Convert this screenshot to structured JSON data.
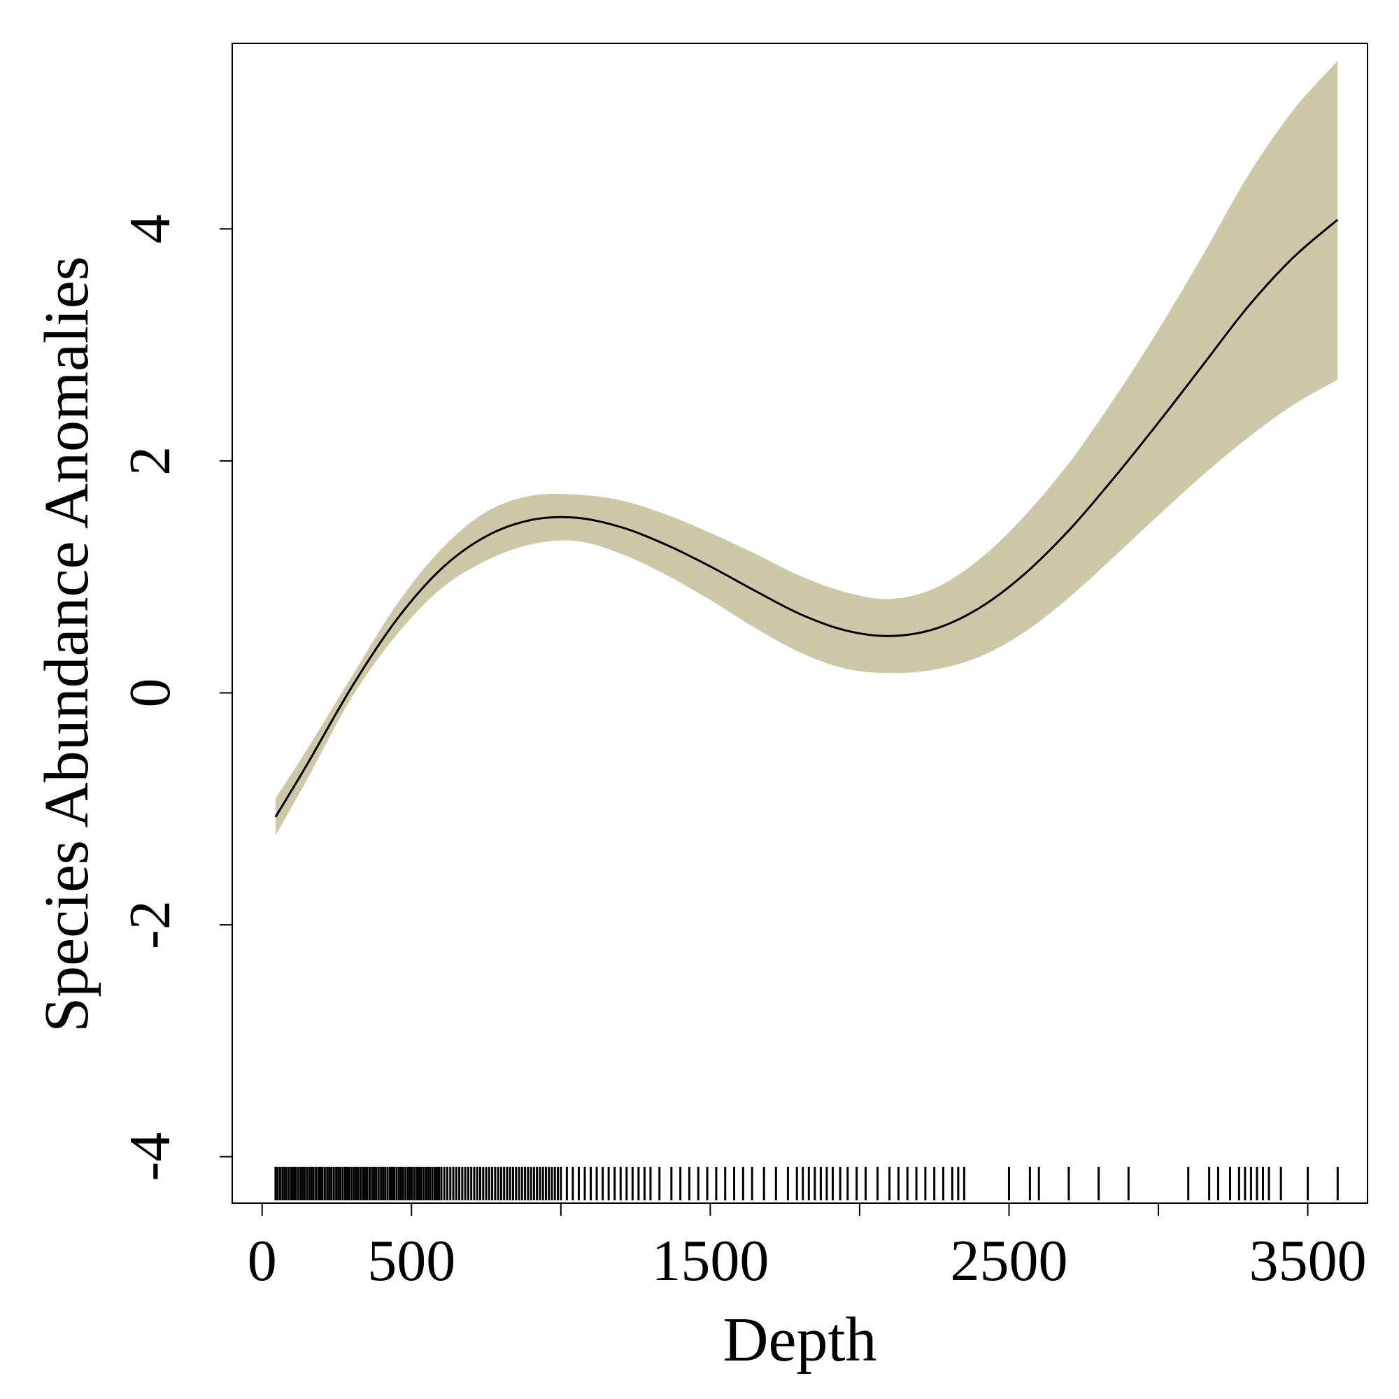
{
  "chart_data": {
    "type": "line",
    "title": "",
    "xlabel": "Depth",
    "ylabel": "Species Abundance Anomalies",
    "xlim": [
      -100,
      3700
    ],
    "ylim": [
      -4.4,
      5.6
    ],
    "x_ticks": [
      0,
      500,
      1000,
      1500,
      2000,
      2500,
      3000,
      3500
    ],
    "x_tick_labels": [
      "0",
      "500",
      "",
      "1500",
      "",
      "2500",
      "",
      "3500"
    ],
    "y_ticks": [
      -4,
      -2,
      0,
      2,
      4
    ],
    "y_tick_labels": [
      "-4",
      "-2",
      "0",
      "2",
      "4"
    ],
    "grid": false,
    "colors": {
      "band": "#cdc9a8",
      "line": "#000000",
      "rug": "#000000"
    },
    "series": [
      {
        "x": [
          45,
          150,
          300,
          450,
          600,
          750,
          900,
          1050,
          1200,
          1350,
          1500,
          1650,
          1800,
          1950,
          2100,
          2250,
          2400,
          2550,
          2700,
          2850,
          3000,
          3150,
          3300,
          3450,
          3600
        ],
        "y": [
          -1.07,
          -0.62,
          0.05,
          0.63,
          1.07,
          1.35,
          1.49,
          1.51,
          1.43,
          1.28,
          1.09,
          0.88,
          0.68,
          0.54,
          0.49,
          0.55,
          0.73,
          1.02,
          1.4,
          1.85,
          2.33,
          2.83,
          3.33,
          3.75,
          4.08
        ],
        "lower": [
          -1.23,
          -0.75,
          -0.04,
          0.5,
          0.9,
          1.14,
          1.28,
          1.31,
          1.2,
          1.02,
          0.8,
          0.56,
          0.35,
          0.21,
          0.17,
          0.2,
          0.31,
          0.52,
          0.82,
          1.17,
          1.53,
          1.88,
          2.2,
          2.48,
          2.7
        ],
        "upper": [
          -0.91,
          -0.49,
          0.14,
          0.76,
          1.24,
          1.56,
          1.7,
          1.71,
          1.66,
          1.54,
          1.38,
          1.2,
          1.01,
          0.87,
          0.81,
          0.9,
          1.15,
          1.52,
          1.98,
          2.53,
          3.13,
          3.78,
          4.46,
          5.02,
          5.45
        ]
      }
    ],
    "rug": [
      45,
      52,
      60,
      68,
      75,
      82,
      90,
      98,
      105,
      112,
      120,
      128,
      135,
      142,
      150,
      158,
      165,
      172,
      180,
      188,
      195,
      202,
      210,
      218,
      225,
      232,
      240,
      248,
      255,
      262,
      270,
      278,
      285,
      292,
      300,
      308,
      315,
      322,
      330,
      338,
      345,
      352,
      360,
      368,
      375,
      382,
      390,
      398,
      405,
      412,
      420,
      428,
      435,
      442,
      450,
      458,
      465,
      472,
      480,
      488,
      495,
      502,
      510,
      518,
      525,
      532,
      540,
      548,
      555,
      562,
      570,
      578,
      585,
      592,
      600,
      610,
      620,
      630,
      640,
      650,
      660,
      670,
      680,
      690,
      700,
      710,
      720,
      730,
      740,
      750,
      760,
      770,
      780,
      790,
      800,
      810,
      820,
      830,
      840,
      850,
      860,
      870,
      880,
      890,
      900,
      910,
      920,
      930,
      940,
      950,
      960,
      970,
      980,
      990,
      1000,
      1020,
      1040,
      1060,
      1080,
      1100,
      1120,
      1140,
      1160,
      1180,
      1200,
      1220,
      1240,
      1260,
      1280,
      1300,
      1330,
      1370,
      1400,
      1430,
      1460,
      1490,
      1520,
      1550,
      1580,
      1610,
      1640,
      1680,
      1720,
      1760,
      1790,
      1810,
      1830,
      1850,
      1870,
      1890,
      1910,
      1935,
      1960,
      1990,
      2020,
      2060,
      2100,
      2130,
      2160,
      2190,
      2220,
      2250,
      2280,
      2310,
      2330,
      2350,
      2500,
      2570,
      2600,
      2700,
      2800,
      2900,
      3100,
      3170,
      3200,
      3240,
      3270,
      3290,
      3310,
      3330,
      3350,
      3370,
      3410,
      3500,
      3600
    ]
  }
}
